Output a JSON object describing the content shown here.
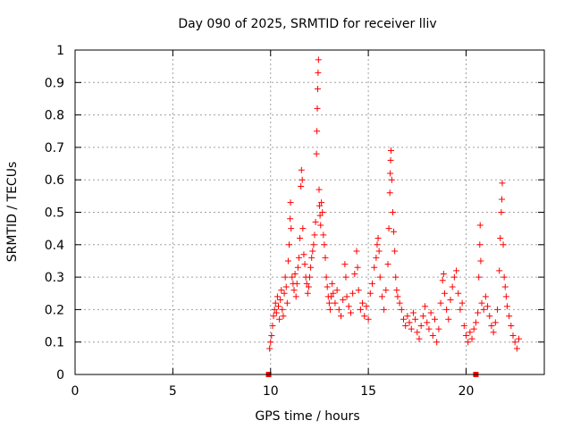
{
  "chart_data": {
    "type": "scatter",
    "title": "Day 090 of 2025, SRMTID for receiver lliv",
    "xlabel": "GPS time / hours",
    "ylabel": "SRMTID / TECUs",
    "xlim": [
      0,
      24
    ],
    "ylim": [
      0,
      1
    ],
    "xticks": [
      0,
      5,
      10,
      15,
      20
    ],
    "yticks": [
      0,
      0.1,
      0.2,
      0.3,
      0.4,
      0.5,
      0.6,
      0.7,
      0.8,
      0.9,
      1
    ],
    "grid": true,
    "marker": "+",
    "color": "#ff0000",
    "baseline_markers": [
      [
        9.9,
        0
      ],
      [
        20.5,
        0
      ]
    ],
    "series": [
      {
        "name": "SRMTID",
        "points": [
          [
            9.95,
            0.08
          ],
          [
            10.0,
            0.1
          ],
          [
            10.05,
            0.12
          ],
          [
            10.1,
            0.15
          ],
          [
            10.15,
            0.18
          ],
          [
            10.2,
            0.2
          ],
          [
            10.25,
            0.22
          ],
          [
            10.3,
            0.19
          ],
          [
            10.35,
            0.24
          ],
          [
            10.4,
            0.21
          ],
          [
            10.45,
            0.17
          ],
          [
            10.5,
            0.23
          ],
          [
            10.55,
            0.26
          ],
          [
            10.6,
            0.2
          ],
          [
            10.65,
            0.18
          ],
          [
            10.7,
            0.25
          ],
          [
            10.75,
            0.3
          ],
          [
            10.8,
            0.27
          ],
          [
            10.85,
            0.22
          ],
          [
            10.9,
            0.35
          ],
          [
            10.95,
            0.4
          ],
          [
            11.0,
            0.48
          ],
          [
            11.02,
            0.53
          ],
          [
            11.05,
            0.45
          ],
          [
            11.1,
            0.3
          ],
          [
            11.15,
            0.28
          ],
          [
            11.2,
            0.26
          ],
          [
            11.25,
            0.31
          ],
          [
            11.3,
            0.24
          ],
          [
            11.35,
            0.28
          ],
          [
            11.4,
            0.33
          ],
          [
            11.45,
            0.36
          ],
          [
            11.5,
            0.42
          ],
          [
            11.55,
            0.58
          ],
          [
            11.58,
            0.63
          ],
          [
            11.62,
            0.6
          ],
          [
            11.65,
            0.45
          ],
          [
            11.7,
            0.37
          ],
          [
            11.75,
            0.34
          ],
          [
            11.8,
            0.3
          ],
          [
            11.85,
            0.28
          ],
          [
            11.9,
            0.25
          ],
          [
            11.95,
            0.27
          ],
          [
            12.0,
            0.3
          ],
          [
            12.05,
            0.33
          ],
          [
            12.1,
            0.36
          ],
          [
            12.15,
            0.38
          ],
          [
            12.2,
            0.4
          ],
          [
            12.25,
            0.43
          ],
          [
            12.3,
            0.47
          ],
          [
            12.35,
            0.68
          ],
          [
            12.37,
            0.75
          ],
          [
            12.39,
            0.82
          ],
          [
            12.41,
            0.88
          ],
          [
            12.43,
            0.93
          ],
          [
            12.45,
            0.97
          ],
          [
            12.48,
            0.57
          ],
          [
            12.5,
            0.52
          ],
          [
            12.53,
            0.49
          ],
          [
            12.56,
            0.46
          ],
          [
            12.6,
            0.53
          ],
          [
            12.65,
            0.5
          ],
          [
            12.7,
            0.43
          ],
          [
            12.75,
            0.4
          ],
          [
            12.8,
            0.36
          ],
          [
            12.85,
            0.3
          ],
          [
            12.9,
            0.27
          ],
          [
            12.95,
            0.24
          ],
          [
            13.0,
            0.22
          ],
          [
            13.05,
            0.2
          ],
          [
            13.1,
            0.24
          ],
          [
            13.15,
            0.28
          ],
          [
            13.2,
            0.25
          ],
          [
            13.3,
            0.22
          ],
          [
            13.4,
            0.26
          ],
          [
            13.5,
            0.2
          ],
          [
            13.6,
            0.18
          ],
          [
            13.7,
            0.23
          ],
          [
            13.8,
            0.34
          ],
          [
            13.85,
            0.3
          ],
          [
            13.9,
            0.24
          ],
          [
            14.0,
            0.21
          ],
          [
            14.1,
            0.19
          ],
          [
            14.2,
            0.25
          ],
          [
            14.3,
            0.31
          ],
          [
            14.4,
            0.38
          ],
          [
            14.45,
            0.33
          ],
          [
            14.5,
            0.26
          ],
          [
            14.6,
            0.2
          ],
          [
            14.7,
            0.22
          ],
          [
            14.8,
            0.18
          ],
          [
            14.9,
            0.21
          ],
          [
            15.0,
            0.17
          ],
          [
            15.1,
            0.25
          ],
          [
            15.2,
            0.28
          ],
          [
            15.3,
            0.33
          ],
          [
            15.4,
            0.36
          ],
          [
            15.45,
            0.4
          ],
          [
            15.5,
            0.42
          ],
          [
            15.55,
            0.38
          ],
          [
            15.6,
            0.3
          ],
          [
            15.7,
            0.24
          ],
          [
            15.8,
            0.2
          ],
          [
            15.9,
            0.26
          ],
          [
            16.0,
            0.34
          ],
          [
            16.05,
            0.45
          ],
          [
            16.1,
            0.56
          ],
          [
            16.12,
            0.62
          ],
          [
            16.14,
            0.66
          ],
          [
            16.16,
            0.69
          ],
          [
            16.2,
            0.6
          ],
          [
            16.25,
            0.5
          ],
          [
            16.3,
            0.44
          ],
          [
            16.35,
            0.38
          ],
          [
            16.4,
            0.3
          ],
          [
            16.45,
            0.26
          ],
          [
            16.5,
            0.24
          ],
          [
            16.6,
            0.22
          ],
          [
            16.7,
            0.2
          ],
          [
            16.8,
            0.17
          ],
          [
            16.9,
            0.15
          ],
          [
            17.0,
            0.18
          ],
          [
            17.1,
            0.16
          ],
          [
            17.2,
            0.14
          ],
          [
            17.3,
            0.19
          ],
          [
            17.4,
            0.17
          ],
          [
            17.5,
            0.13
          ],
          [
            17.6,
            0.11
          ],
          [
            17.7,
            0.15
          ],
          [
            17.8,
            0.18
          ],
          [
            17.9,
            0.21
          ],
          [
            18.0,
            0.16
          ],
          [
            18.1,
            0.14
          ],
          [
            18.2,
            0.19
          ],
          [
            18.3,
            0.12
          ],
          [
            18.4,
            0.17
          ],
          [
            18.5,
            0.1
          ],
          [
            18.6,
            0.14
          ],
          [
            18.7,
            0.22
          ],
          [
            18.8,
            0.29
          ],
          [
            18.85,
            0.31
          ],
          [
            18.9,
            0.25
          ],
          [
            19.0,
            0.2
          ],
          [
            19.1,
            0.17
          ],
          [
            19.2,
            0.23
          ],
          [
            19.3,
            0.27
          ],
          [
            19.4,
            0.3
          ],
          [
            19.5,
            0.32
          ],
          [
            19.6,
            0.25
          ],
          [
            19.7,
            0.2
          ],
          [
            19.8,
            0.22
          ],
          [
            19.9,
            0.15
          ],
          [
            20.0,
            0.12
          ],
          [
            20.1,
            0.1
          ],
          [
            20.2,
            0.13
          ],
          [
            20.3,
            0.11
          ],
          [
            20.4,
            0.14
          ],
          [
            20.5,
            0.16
          ],
          [
            20.6,
            0.19
          ],
          [
            20.65,
            0.3
          ],
          [
            20.7,
            0.4
          ],
          [
            20.72,
            0.46
          ],
          [
            20.75,
            0.35
          ],
          [
            20.8,
            0.22
          ],
          [
            20.9,
            0.2
          ],
          [
            21.0,
            0.24
          ],
          [
            21.1,
            0.21
          ],
          [
            21.2,
            0.18
          ],
          [
            21.3,
            0.15
          ],
          [
            21.4,
            0.13
          ],
          [
            21.5,
            0.16
          ],
          [
            21.6,
            0.2
          ],
          [
            21.7,
            0.32
          ],
          [
            21.75,
            0.42
          ],
          [
            21.8,
            0.5
          ],
          [
            21.83,
            0.54
          ],
          [
            21.85,
            0.59
          ],
          [
            21.9,
            0.4
          ],
          [
            21.95,
            0.3
          ],
          [
            22.0,
            0.27
          ],
          [
            22.05,
            0.24
          ],
          [
            22.1,
            0.21
          ],
          [
            22.2,
            0.18
          ],
          [
            22.3,
            0.15
          ],
          [
            22.4,
            0.12
          ],
          [
            22.5,
            0.1
          ],
          [
            22.6,
            0.08
          ],
          [
            22.7,
            0.11
          ]
        ]
      }
    ]
  }
}
